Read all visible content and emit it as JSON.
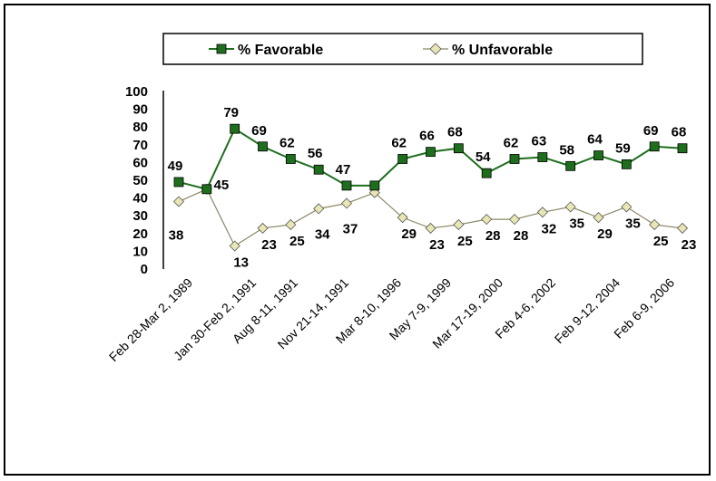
{
  "chart_data": {
    "type": "line",
    "ylim": [
      0,
      100
    ],
    "yticks": [
      0,
      10,
      20,
      30,
      40,
      50,
      60,
      70,
      80,
      90,
      100
    ],
    "x_tick_labels": [
      "Feb 28-Mar 2, 1989",
      "Jan 30-Feb 2, 1991",
      "Aug 8-11, 1991",
      "Nov 21-14, 1991",
      "Mar 8-10, 1996",
      "May 7-9, 1999",
      "Mar 17-19, 2000",
      "Feb 4-6, 2002",
      "Feb 9-12, 2004",
      "Feb 6-9, 2006"
    ],
    "legend_position": "top",
    "series": [
      {
        "name": "% Favorable",
        "color": "#1e6e1e",
        "marker": "square",
        "values": [
          49,
          45,
          79,
          69,
          62,
          56,
          47,
          47,
          62,
          66,
          68,
          54,
          62,
          63,
          58,
          64,
          59,
          69,
          68
        ]
      },
      {
        "name": "% Unfavorable",
        "color": "#e8e6b4",
        "marker": "diamond",
        "values": [
          38,
          45,
          13,
          23,
          25,
          34,
          37,
          43,
          29,
          23,
          25,
          28,
          28,
          32,
          35,
          29,
          35,
          25,
          23
        ]
      }
    ],
    "data_labels": {
      "favorable": [
        "49",
        "",
        "79",
        "69",
        "62",
        "56",
        "47",
        "",
        "62",
        "66",
        "68",
        "54",
        "62",
        "63",
        "58",
        "64",
        "59",
        "69",
        "68"
      ],
      "unfavorable": [
        "38",
        "45",
        "13",
        "23",
        "25",
        "34",
        "37",
        "",
        "29",
        "23",
        "25",
        "28",
        "28",
        "32",
        "35",
        "29",
        "35",
        "25",
        "23"
      ]
    }
  }
}
